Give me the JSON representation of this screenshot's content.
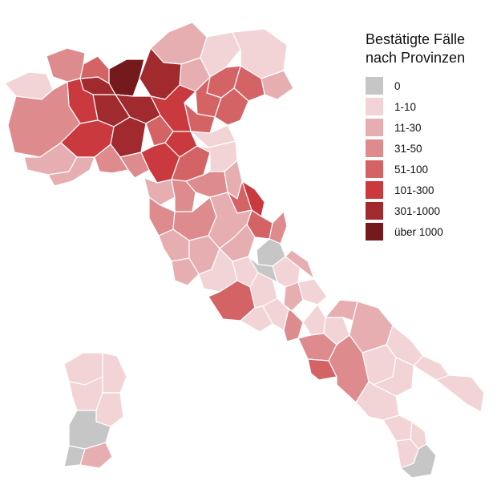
{
  "legend": {
    "title_line1": "Bestätigte Fälle",
    "title_line2": "nach Provinzen",
    "classes": [
      {
        "label": "0",
        "color": "#c6c6c6"
      },
      {
        "label": "1-10",
        "color": "#f2d4d6"
      },
      {
        "label": "11-30",
        "color": "#e7aeb1"
      },
      {
        "label": "31-50",
        "color": "#de8b8e"
      },
      {
        "label": "51-100",
        "color": "#d46366"
      },
      {
        "label": "101-300",
        "color": "#c9393e"
      },
      {
        "label": "301-1000",
        "color": "#a02a2e"
      },
      {
        "label": "über 1000",
        "color": "#74191c"
      }
    ]
  }
}
